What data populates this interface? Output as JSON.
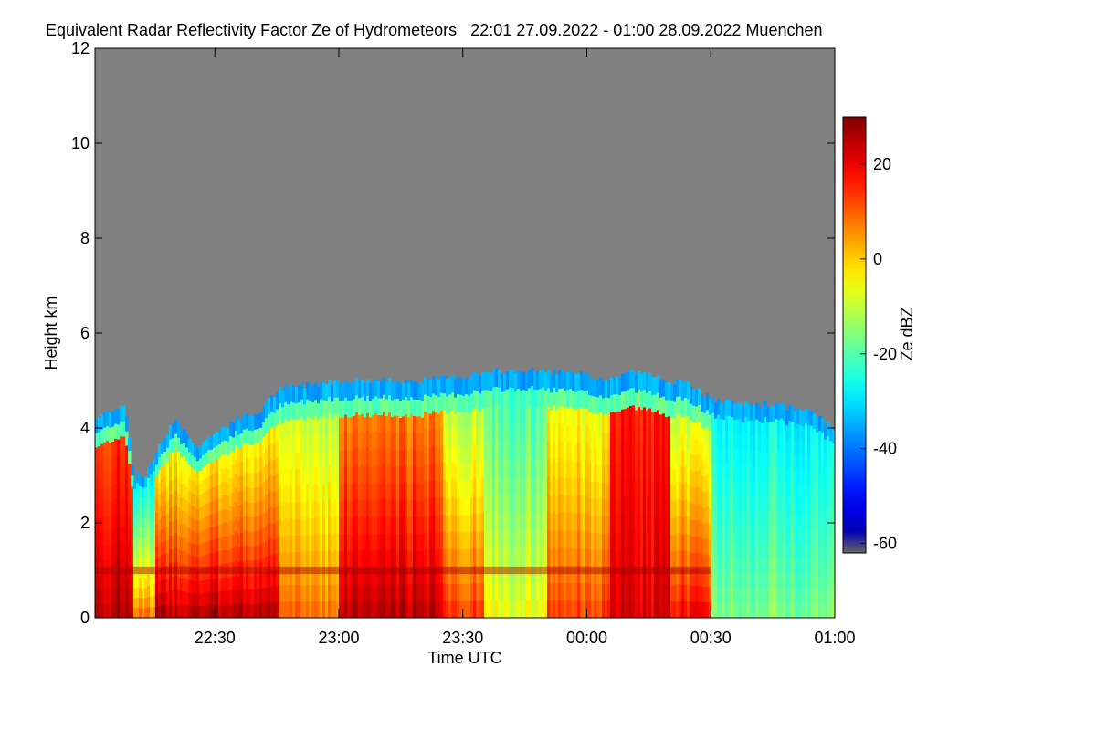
{
  "chart_data": {
    "type": "heatmap",
    "title": "Equivalent Radar Reflectivity Factor Ze of Hydrometeors   22:01 27.09.2022 - 01:00 28.09.2022 Muenchen",
    "xlabel": "Time UTC",
    "ylabel": "Height km",
    "x_range": [
      "22:01",
      "01:00"
    ],
    "x_ticks": [
      "22:30",
      "23:00",
      "23:30",
      "00:00",
      "00:30",
      "01:00"
    ],
    "ylim": [
      0,
      12
    ],
    "y_ticks": [
      "0",
      "2",
      "4",
      "6",
      "8",
      "10",
      "12"
    ],
    "colorbar": {
      "label": "Ze dBZ",
      "range": [
        -62,
        30
      ],
      "ticks": [
        "20",
        "0",
        "-20",
        "-40",
        "-60"
      ],
      "colormap": "jet"
    },
    "background_color": "#808080",
    "cloud_top_km": [
      {
        "x": "22:01",
        "y": 4.2
      },
      {
        "x": "22:05",
        "y": 4.4
      },
      {
        "x": "22:08",
        "y": 4.5
      },
      {
        "x": "22:10",
        "y": 3.0
      },
      {
        "x": "22:13",
        "y": 3.0
      },
      {
        "x": "22:16",
        "y": 3.6
      },
      {
        "x": "22:20",
        "y": 4.2
      },
      {
        "x": "22:25",
        "y": 3.6
      },
      {
        "x": "22:30",
        "y": 3.9
      },
      {
        "x": "22:35",
        "y": 4.2
      },
      {
        "x": "22:40",
        "y": 4.3
      },
      {
        "x": "22:45",
        "y": 4.8
      },
      {
        "x": "22:50",
        "y": 4.9
      },
      {
        "x": "23:00",
        "y": 5.0
      },
      {
        "x": "23:10",
        "y": 5.0
      },
      {
        "x": "23:20",
        "y": 5.0
      },
      {
        "x": "23:30",
        "y": 5.1
      },
      {
        "x": "23:40",
        "y": 5.2
      },
      {
        "x": "23:50",
        "y": 5.2
      },
      {
        "x": "00:00",
        "y": 5.1
      },
      {
        "x": "00:05",
        "y": 5.0
      },
      {
        "x": "00:10",
        "y": 5.2
      },
      {
        "x": "00:20",
        "y": 5.0
      },
      {
        "x": "00:25",
        "y": 4.9
      },
      {
        "x": "00:30",
        "y": 4.6
      },
      {
        "x": "00:35",
        "y": 4.5
      },
      {
        "x": "00:45",
        "y": 4.5
      },
      {
        "x": "00:50",
        "y": 4.4
      },
      {
        "x": "00:55",
        "y": 4.3
      },
      {
        "x": "01:00",
        "y": 3.9
      }
    ],
    "zones": [
      {
        "from": "22:01",
        "to": "22:10",
        "top_ze": 12,
        "bottom_ze": 26
      },
      {
        "from": "22:10",
        "to": "22:15",
        "top_ze": -30,
        "bottom_ze": 10
      },
      {
        "from": "22:15",
        "to": "22:45",
        "top_ze": -8,
        "bottom_ze": 27
      },
      {
        "from": "22:45",
        "to": "23:00",
        "top_ze": -12,
        "bottom_ze": 10
      },
      {
        "from": "23:00",
        "to": "23:25",
        "top_ze": 5,
        "bottom_ze": 26
      },
      {
        "from": "23:25",
        "to": "23:35",
        "top_ze": -15,
        "bottom_ze": 15
      },
      {
        "from": "23:35",
        "to": "23:50",
        "top_ze": -22,
        "bottom_ze": -5
      },
      {
        "from": "23:50",
        "to": "00:05",
        "top_ze": -8,
        "bottom_ze": 14
      },
      {
        "from": "00:05",
        "to": "00:20",
        "top_ze": 15,
        "bottom_ze": 22
      },
      {
        "from": "00:20",
        "to": "00:30",
        "top_ze": -12,
        "bottom_ze": 20
      },
      {
        "from": "00:30",
        "to": "01:00",
        "top_ze": -28,
        "bottom_ze": -15
      }
    ],
    "melting_layer_km": 1.0
  }
}
